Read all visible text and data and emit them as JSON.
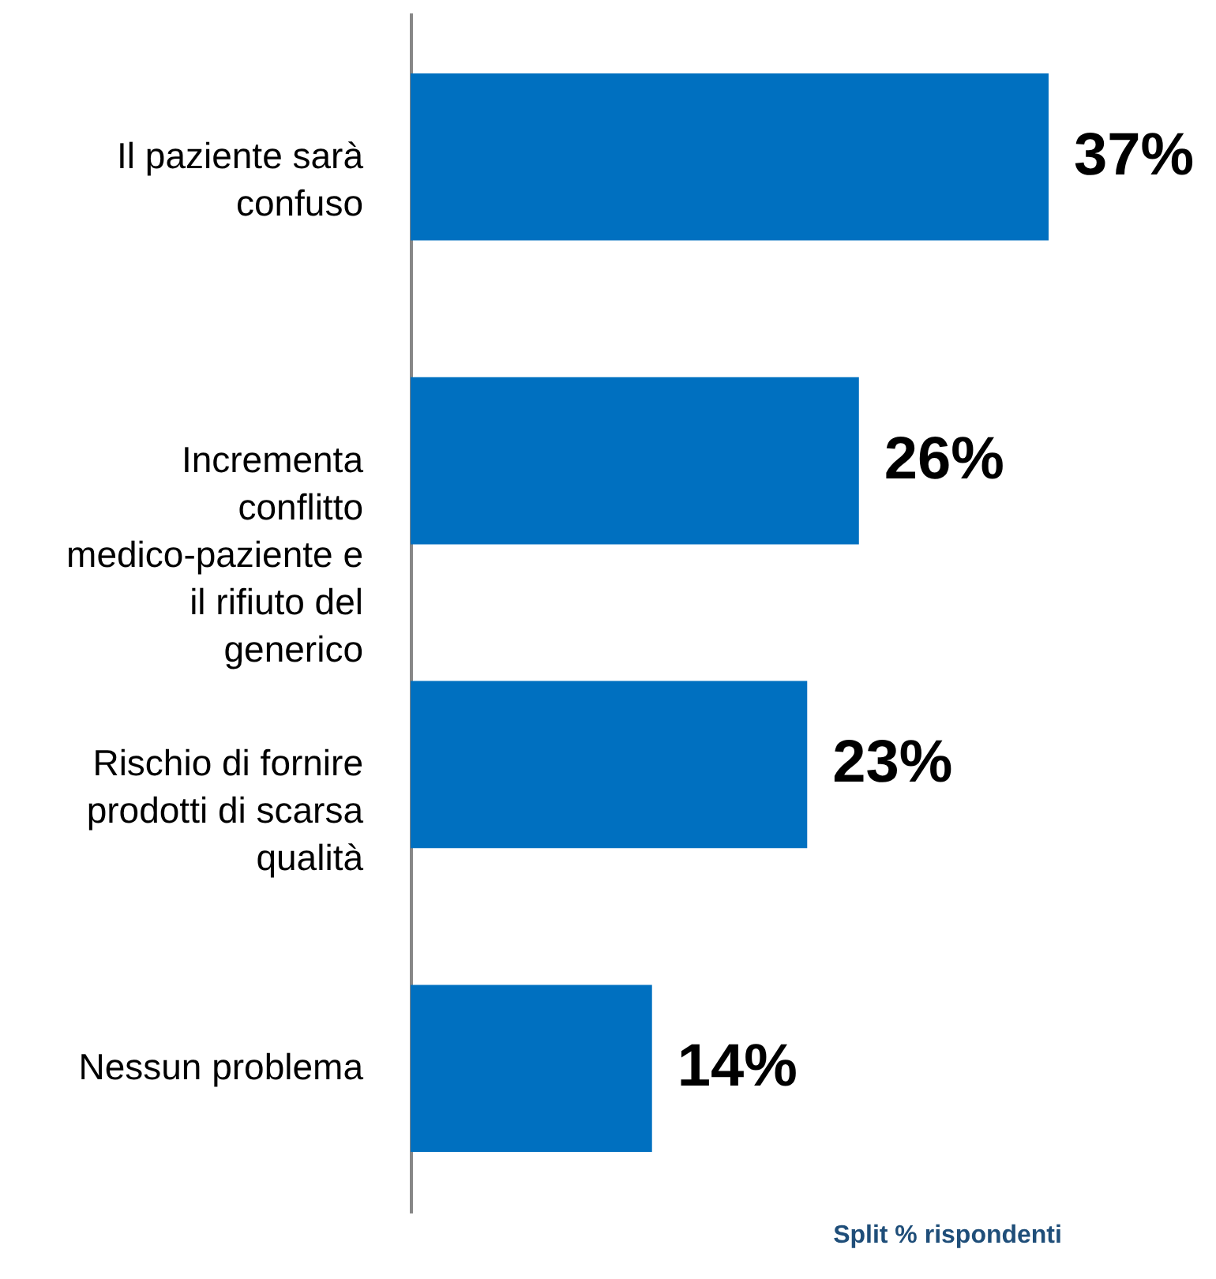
{
  "chart_data": {
    "type": "bar",
    "orientation": "horizontal",
    "categories": [
      "Il paziente sarà confuso",
      "Incrementa conflitto medico-paziente e il rifiuto del generico",
      "Rischio di fornire prodotti di scarsa qualità",
      "Nessun problema"
    ],
    "values": [
      37,
      26,
      23,
      14
    ],
    "value_labels": [
      "37%",
      "26%",
      "23%",
      "14%"
    ],
    "color": "#0070c0",
    "annotations": [
      "Split % rispondenti"
    ],
    "grid": false
  }
}
